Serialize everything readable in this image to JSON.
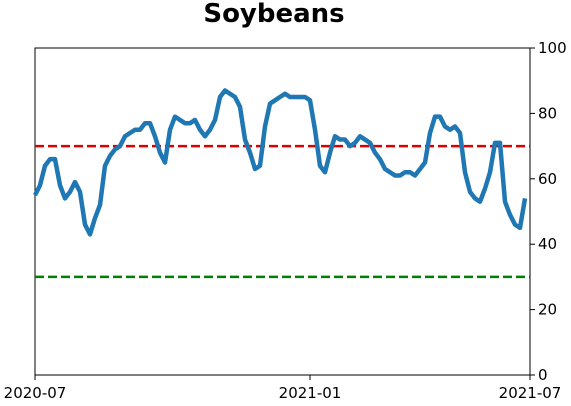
{
  "chart_data": {
    "type": "line",
    "title": "Soybeans",
    "categories": [
      "2020-07",
      null,
      null,
      null,
      null,
      null,
      null,
      null,
      null,
      null,
      null,
      null,
      null,
      null,
      null,
      null,
      null,
      null,
      null,
      null,
      null,
      null,
      null,
      null,
      null,
      null,
      null,
      null,
      null,
      null,
      null,
      null,
      null,
      null,
      null,
      null,
      null,
      null,
      null,
      null,
      null,
      null,
      null,
      null,
      null,
      null,
      null,
      null,
      null,
      null,
      null,
      null,
      null,
      null,
      null,
      "2021-01",
      null,
      null,
      null,
      null,
      null,
      null,
      null,
      null,
      null,
      null,
      null,
      null,
      null,
      null,
      null,
      null,
      null,
      null,
      null,
      null,
      null,
      null,
      null,
      null,
      null,
      null,
      null,
      null,
      null,
      null,
      null,
      null,
      null,
      null,
      null,
      null,
      null,
      null,
      null,
      null,
      null,
      null,
      null,
      "2021-07"
    ],
    "series": [
      {
        "color": "#1f77b4",
        "values": [
          55,
          58,
          64,
          66,
          66,
          58,
          54,
          56,
          59,
          56,
          46,
          43,
          48,
          52,
          64,
          67,
          69,
          70,
          73,
          74,
          75,
          75,
          77,
          77,
          73,
          68,
          65,
          75,
          79,
          78,
          77,
          77,
          78,
          75,
          73,
          75,
          78,
          85,
          87,
          86,
          85,
          82,
          72,
          68,
          63,
          64,
          76,
          83,
          84,
          85,
          86,
          85,
          85,
          85,
          85,
          84,
          75,
          64,
          62,
          68,
          73,
          72,
          72,
          70,
          71,
          73,
          72,
          71,
          68,
          66,
          63,
          62,
          61,
          61,
          62,
          62,
          61,
          63,
          65,
          74,
          79,
          79,
          76,
          75,
          76,
          74,
          62,
          56,
          54,
          53,
          57,
          62,
          71,
          71,
          53,
          49,
          46,
          45,
          54,
          null
        ]
      }
    ],
    "reference_lines": [
      {
        "value": 70,
        "color": "#dd0000"
      },
      {
        "value": 30,
        "color": "#008000"
      }
    ],
    "ylim": [
      0,
      100
    ],
    "yticks": [
      0,
      20,
      40,
      60,
      80,
      100
    ]
  }
}
